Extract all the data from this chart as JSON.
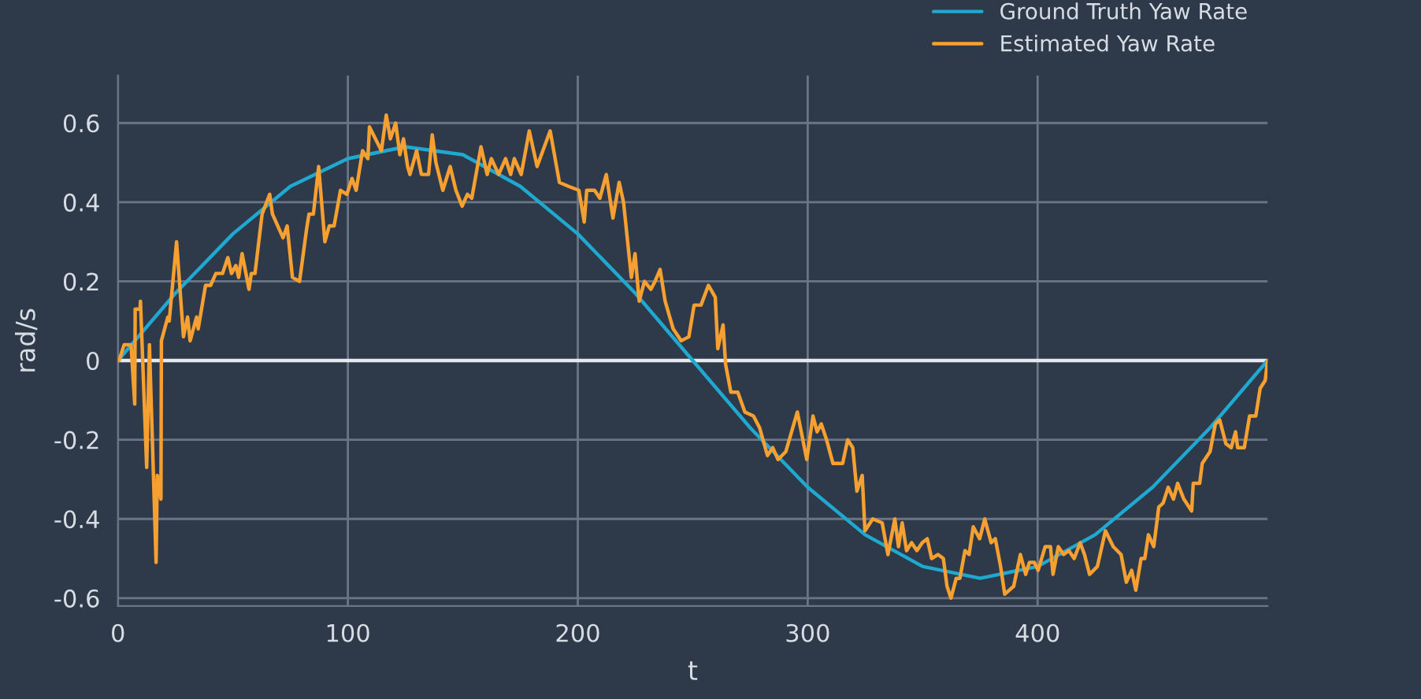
{
  "chart_data": {
    "type": "line",
    "xlabel": "t",
    "ylabel": "rad/s",
    "xlim": [
      0,
      500
    ],
    "ylim": [
      -0.62,
      0.72
    ],
    "xticks": [
      0,
      100,
      200,
      300,
      400
    ],
    "yticks": [
      -0.6,
      -0.4,
      -0.2,
      0,
      0.2,
      0.4,
      0.6
    ],
    "grid": true,
    "legend": "top right",
    "line_style": "solid",
    "marker": "none",
    "ref_lines": [
      {
        "axis": "y",
        "value": 0,
        "color": "#e6e9ee"
      }
    ],
    "series": [
      {
        "name": "Ground Truth Yaw Rate",
        "color": "#1fa8d0",
        "x": [
          0,
          25,
          50,
          75,
          100,
          125,
          150,
          175,
          200,
          225,
          250,
          275,
          300,
          325,
          350,
          375,
          400,
          425,
          450,
          475,
          500
        ],
        "values": [
          0,
          0.17,
          0.32,
          0.44,
          0.51,
          0.54,
          0.52,
          0.44,
          0.32,
          0.17,
          0,
          -0.17,
          -0.32,
          -0.44,
          -0.52,
          -0.55,
          -0.52,
          -0.44,
          -0.32,
          -0.17,
          0
        ]
      },
      {
        "name": "Estimated Yaw Rate",
        "color": "#f5a030",
        "x": [
          0.5,
          2.7,
          5.7,
          7.3,
          7.5,
          9.6,
          9.8,
          12.5,
          13.7,
          16.6,
          17.1,
          18.7,
          18.9,
          21.7,
          22.3,
          25.5,
          28.5,
          30.3,
          31.4,
          34.2,
          34.9,
          38.1,
          40.3,
          42.6,
          45.5,
          47.8,
          49.4,
          51.3,
          52.5,
          54,
          57,
          58,
          59.6,
          62.7,
          66,
          67.2,
          71.8,
          73.6,
          75.9,
          79,
          82,
          83.1,
          85,
          87.3,
          90,
          91.9,
          94,
          96.8,
          99.6,
          101.8,
          103.6,
          106.4,
          108.7,
          109.4,
          114.6,
          116.7,
          118.5,
          120.8,
          122.6,
          124.2,
          126,
          127,
          129.9,
          132,
          135.1,
          136.7,
          138.3,
          141.3,
          144.5,
          147,
          149.7,
          152,
          153.9,
          157.9,
          160.6,
          162.4,
          165.6,
          168.6,
          170.8,
          172.4,
          175.4,
          178.9,
          182.3,
          188,
          192,
          196,
          200.5,
          202.8,
          203.9,
          207.3,
          209.6,
          212.4,
          215.3,
          218,
          219.9,
          223.3,
          224.9,
          226.7,
          229,
          231.8,
          233.6,
          235.8,
          238,
          241.5,
          245,
          248.3,
          250.6,
          253.6,
          256.8,
          259.8,
          260.9,
          263.2,
          264.3,
          266.6,
          269.6,
          272.7,
          276.4,
          279.1,
          282.5,
          284.8,
          287.1,
          290.5,
          295.5,
          299.6,
          302.3,
          304.1,
          305.9,
          308.2,
          311,
          315.2,
          317.4,
          319.6,
          321.4,
          323.7,
          324.9,
          328.3,
          332.4,
          334.9,
          337.9,
          339.5,
          341.1,
          343,
          345.2,
          347.5,
          349.8,
          352,
          353.9,
          356.7,
          359,
          360.6,
          362.3,
          364.6,
          366.2,
          368.4,
          370.2,
          372,
          374.8,
          377,
          379.8,
          381.6,
          383.9,
          385.7,
          389.6,
          392.5,
          394.8,
          396.4,
          398.6,
          400.2,
          403.3,
          405.6,
          406.7,
          409,
          411.3,
          413.6,
          415.9,
          418.5,
          420.4,
          422.6,
          426,
          429.5,
          432.9,
          436.3,
          438.6,
          440.9,
          442.7,
          445,
          446.6,
          448.2,
          450.5,
          452.7,
          454.6,
          456.8,
          459.1,
          460.9,
          463.6,
          467,
          467.7,
          470.5,
          471.6,
          475,
          477.3,
          479.2,
          481.9,
          484.2,
          486.1,
          487,
          489.9,
          492.2,
          494.9,
          496.8,
          499,
          500
        ],
        "values": [
          0,
          0.04,
          0.04,
          -0.11,
          0.13,
          0.13,
          0.15,
          -0.27,
          0.04,
          -0.51,
          -0.29,
          -0.35,
          0.05,
          0.11,
          0.1,
          0.3,
          0.06,
          0.11,
          0.05,
          0.11,
          0.08,
          0.19,
          0.19,
          0.22,
          0.22,
          0.26,
          0.22,
          0.24,
          0.21,
          0.27,
          0.18,
          0.22,
          0.22,
          0.37,
          0.42,
          0.37,
          0.31,
          0.34,
          0.21,
          0.2,
          0.33,
          0.37,
          0.37,
          0.49,
          0.3,
          0.34,
          0.34,
          0.43,
          0.42,
          0.46,
          0.43,
          0.53,
          0.51,
          0.59,
          0.53,
          0.62,
          0.56,
          0.6,
          0.52,
          0.56,
          0.49,
          0.47,
          0.53,
          0.47,
          0.47,
          0.57,
          0.5,
          0.43,
          0.49,
          0.43,
          0.39,
          0.42,
          0.41,
          0.54,
          0.47,
          0.51,
          0.47,
          0.51,
          0.47,
          0.51,
          0.47,
          0.58,
          0.49,
          0.58,
          0.45,
          0.44,
          0.43,
          0.35,
          0.43,
          0.43,
          0.41,
          0.47,
          0.36,
          0.45,
          0.4,
          0.21,
          0.27,
          0.15,
          0.2,
          0.18,
          0.2,
          0.23,
          0.15,
          0.08,
          0.05,
          0.06,
          0.14,
          0.14,
          0.19,
          0.16,
          0.03,
          0.09,
          -0.01,
          -0.08,
          -0.08,
          -0.13,
          -0.14,
          -0.17,
          -0.24,
          -0.22,
          -0.25,
          -0.23,
          -0.13,
          -0.25,
          -0.14,
          -0.18,
          -0.16,
          -0.2,
          -0.26,
          -0.26,
          -0.2,
          -0.22,
          -0.33,
          -0.29,
          -0.43,
          -0.4,
          -0.41,
          -0.49,
          -0.4,
          -0.47,
          -0.41,
          -0.48,
          -0.46,
          -0.48,
          -0.46,
          -0.45,
          -0.5,
          -0.49,
          -0.5,
          -0.57,
          -0.6,
          -0.55,
          -0.55,
          -0.48,
          -0.49,
          -0.42,
          -0.45,
          -0.4,
          -0.46,
          -0.45,
          -0.52,
          -0.59,
          -0.57,
          -0.49,
          -0.54,
          -0.51,
          -0.51,
          -0.53,
          -0.47,
          -0.47,
          -0.54,
          -0.47,
          -0.49,
          -0.48,
          -0.5,
          -0.46,
          -0.49,
          -0.54,
          -0.52,
          -0.43,
          -0.47,
          -0.49,
          -0.56,
          -0.53,
          -0.58,
          -0.5,
          -0.5,
          -0.44,
          -0.47,
          -0.37,
          -0.36,
          -0.32,
          -0.35,
          -0.31,
          -0.35,
          -0.38,
          -0.31,
          -0.31,
          -0.26,
          -0.23,
          -0.16,
          -0.15,
          -0.21,
          -0.22,
          -0.18,
          -0.22,
          -0.22,
          -0.14,
          -0.14,
          -0.07,
          -0.05,
          0
        ]
      }
    ]
  }
}
